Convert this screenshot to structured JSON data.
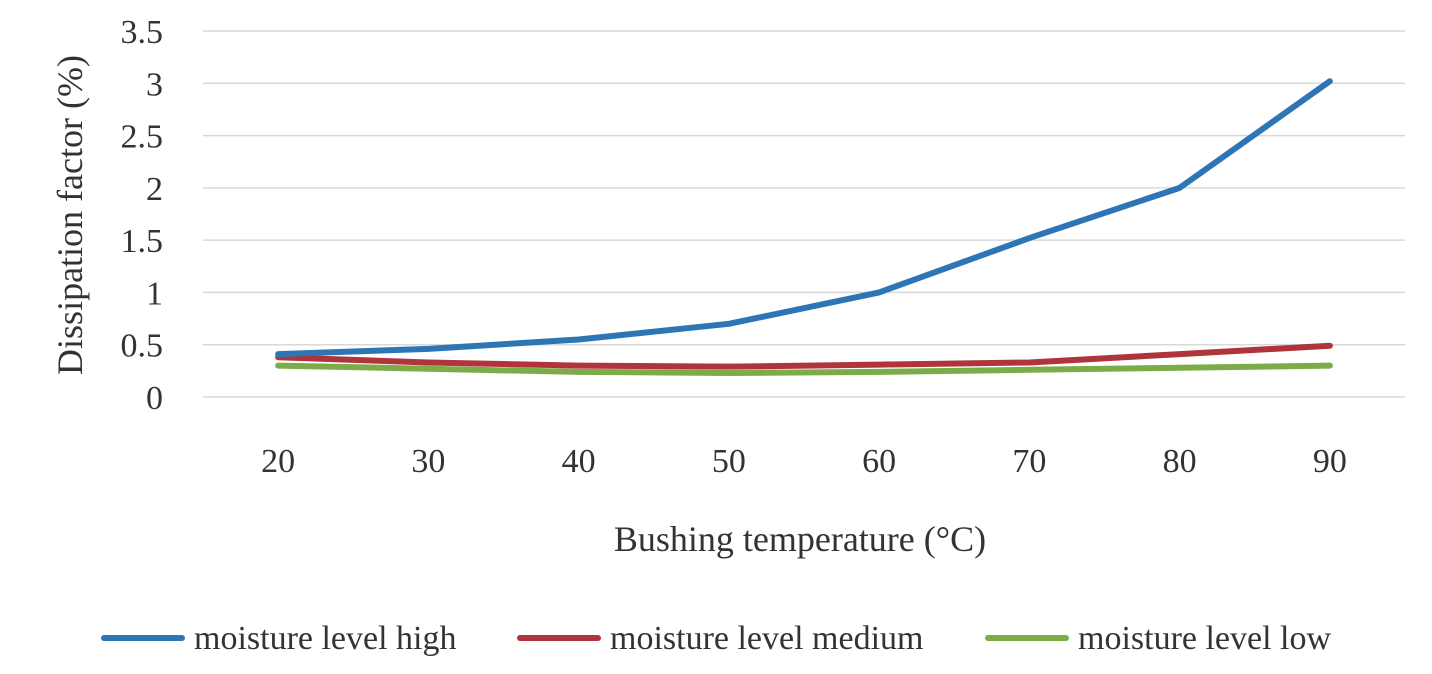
{
  "chart_data": {
    "type": "line",
    "xlabel": "Bushing temperature (°C)",
    "ylabel": "Dissipation factor (%)",
    "categories": [
      20,
      30,
      40,
      50,
      60,
      70,
      80,
      90
    ],
    "ylim": [
      0,
      3.5
    ],
    "yticks": [
      0,
      0.5,
      1,
      1.5,
      2,
      2.5,
      3,
      3.5
    ],
    "ytick_labels": [
      "0",
      "0.5",
      "1",
      "1.5",
      "2",
      "2.5",
      "3",
      "3.5"
    ],
    "grid": true,
    "legend_position": "bottom",
    "series": [
      {
        "name": "moisture level high",
        "color": "#2e75b6",
        "values": [
          0.41,
          0.46,
          0.55,
          0.7,
          1.0,
          1.52,
          2.0,
          3.02
        ]
      },
      {
        "name": "moisture level medium",
        "color": "#b0343c",
        "values": [
          0.38,
          0.33,
          0.3,
          0.29,
          0.31,
          0.33,
          0.41,
          0.49
        ]
      },
      {
        "name": "moisture level low",
        "color": "#7cac4a",
        "values": [
          0.3,
          0.27,
          0.24,
          0.23,
          0.24,
          0.26,
          0.28,
          0.3
        ]
      }
    ]
  }
}
